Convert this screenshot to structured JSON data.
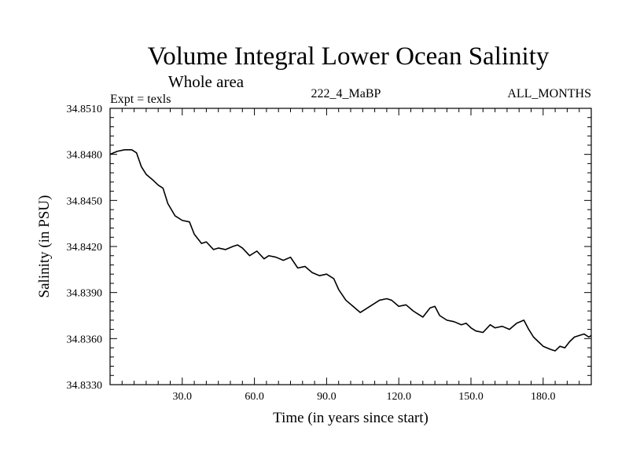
{
  "chart_data": {
    "type": "line",
    "title": "Volume Integral Lower Ocean Salinity",
    "subtitle": "Whole area",
    "expt_label": "Expt = texls",
    "run_label": "222_4_MaBP",
    "months_label": "ALL_MONTHS",
    "xlabel": "Time (in years since start)",
    "ylabel": "Salinity (in PSU)",
    "xlim": [
      0,
      200
    ],
    "ylim": [
      34.833,
      34.851
    ],
    "xticks": [
      "30.0",
      "60.0",
      "90.0",
      "120.0",
      "150.0",
      "180.0"
    ],
    "xtick_values": [
      30,
      60,
      90,
      120,
      150,
      180
    ],
    "yticks": [
      "34.8510",
      "34.8480",
      "34.8450",
      "34.8420",
      "34.8390",
      "34.8360",
      "34.8330"
    ],
    "ytick_values": [
      34.851,
      34.848,
      34.845,
      34.842,
      34.839,
      34.836,
      34.833
    ],
    "grid": false,
    "series": [
      {
        "name": "Salinity",
        "color": "#000000",
        "x": [
          0,
          3,
          6,
          9,
          11,
          13,
          15,
          18,
          20,
          22,
          24,
          27,
          30,
          33,
          35,
          38,
          40,
          43,
          45,
          48,
          51,
          53,
          55,
          58,
          61,
          64,
          66,
          69,
          72,
          75,
          78,
          81,
          84,
          87,
          90,
          93,
          95,
          98,
          101,
          104,
          106,
          109,
          112,
          115,
          117,
          120,
          123,
          126,
          128,
          130,
          133,
          135,
          137,
          140,
          143,
          146,
          148,
          150,
          152,
          155,
          158,
          160,
          163,
          166,
          169,
          172,
          174,
          176,
          178,
          180,
          183,
          185,
          187,
          189,
          191,
          193,
          195,
          197,
          199,
          200
        ],
        "values": [
          34.848,
          34.8482,
          34.8483,
          34.8483,
          34.8481,
          34.8472,
          34.8467,
          34.8463,
          34.846,
          34.8458,
          34.8448,
          34.844,
          34.8437,
          34.8436,
          34.8428,
          34.8422,
          34.8423,
          34.8418,
          34.8419,
          34.8418,
          34.842,
          34.8421,
          34.8419,
          34.8414,
          34.8417,
          34.8412,
          34.8414,
          34.8413,
          34.8411,
          34.8413,
          34.8406,
          34.8407,
          34.8403,
          34.8401,
          34.8402,
          34.8399,
          34.8392,
          34.8385,
          34.8381,
          34.8377,
          34.8379,
          34.8382,
          34.8385,
          34.8386,
          34.8385,
          34.8381,
          34.8382,
          34.8378,
          34.8376,
          34.8374,
          34.838,
          34.8381,
          34.8375,
          34.8372,
          34.8371,
          34.8369,
          34.837,
          34.8367,
          34.8365,
          34.8364,
          34.8369,
          34.8367,
          34.8368,
          34.8366,
          34.837,
          34.8372,
          34.8366,
          34.8361,
          34.8358,
          34.8355,
          34.8353,
          34.8352,
          34.8355,
          34.8354,
          34.8358,
          34.8361,
          34.8362,
          34.8363,
          34.8361,
          34.8362
        ]
      }
    ]
  }
}
